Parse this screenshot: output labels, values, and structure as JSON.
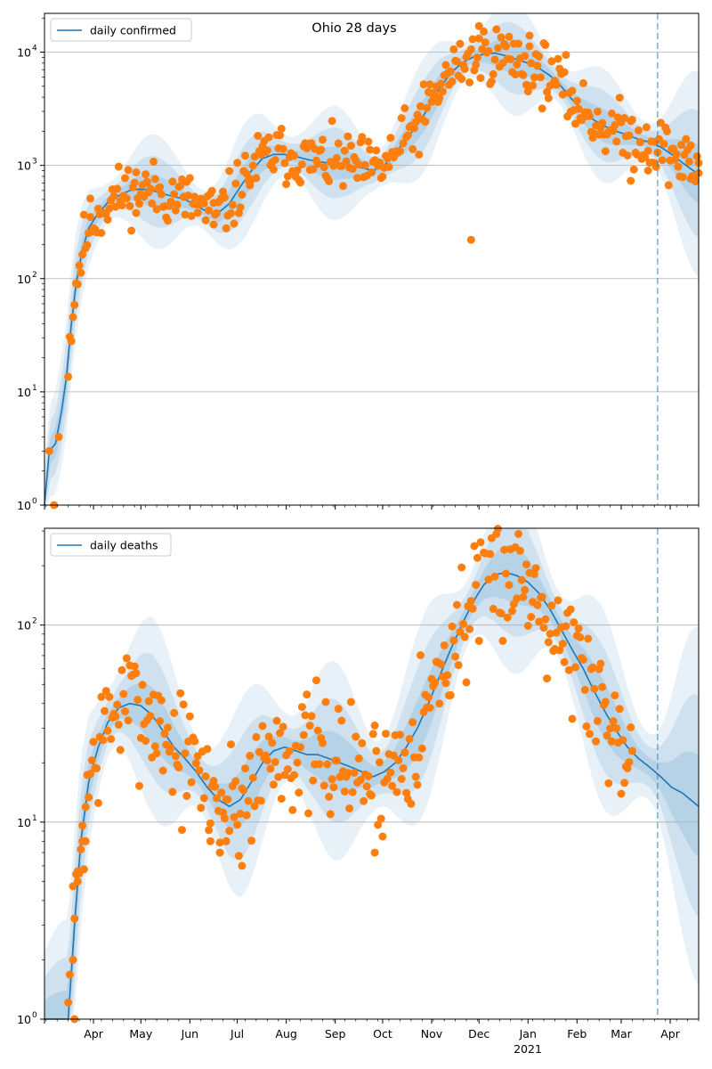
{
  "figure": {
    "title": "Ohio 28 days",
    "year_label": "2021",
    "colors": {
      "model_line": "#1f77b4",
      "observed": "#ff7f0e",
      "band": "#1f77b4",
      "grid": "#b0b0b0",
      "vline": "#1f77b4"
    }
  },
  "chart_data": [
    {
      "type": "line",
      "yscale": "log",
      "ylim": [
        1,
        22000
      ],
      "xlim": [
        "2020-03-01",
        "2021-04-19"
      ],
      "yticks": [
        1,
        10,
        100,
        1000,
        10000
      ],
      "ytick_labels": [
        {
          "base": "10",
          "exp": "0"
        },
        {
          "base": "10",
          "exp": "1"
        },
        {
          "base": "10",
          "exp": "2"
        },
        {
          "base": "10",
          "exp": "3"
        },
        {
          "base": "10",
          "exp": "4"
        }
      ],
      "grid": "horizontal",
      "legend": {
        "label": "daily confirmed",
        "placement": "top-left"
      },
      "vline_date": "2021-03-24",
      "model_curve": [
        [
          "2020-03-01",
          1
        ],
        [
          "2020-03-04",
          3
        ],
        [
          "2020-03-08",
          3.5
        ],
        [
          "2020-03-12",
          7
        ],
        [
          "2020-03-15",
          14
        ],
        [
          "2020-03-18",
          40
        ],
        [
          "2020-03-21",
          90
        ],
        [
          "2020-03-25",
          180
        ],
        [
          "2020-03-29",
          280
        ],
        [
          "2020-04-03",
          360
        ],
        [
          "2020-04-10",
          470
        ],
        [
          "2020-04-17",
          540
        ],
        [
          "2020-04-24",
          600
        ],
        [
          "2020-05-01",
          620
        ],
        [
          "2020-05-08",
          600
        ],
        [
          "2020-05-15",
          560
        ],
        [
          "2020-05-22",
          530
        ],
        [
          "2020-05-29",
          500
        ],
        [
          "2020-06-05",
          440
        ],
        [
          "2020-06-12",
          390
        ],
        [
          "2020-06-19",
          380
        ],
        [
          "2020-06-26",
          460
        ],
        [
          "2020-07-03",
          650
        ],
        [
          "2020-07-10",
          900
        ],
        [
          "2020-07-17",
          1150
        ],
        [
          "2020-07-24",
          1250
        ],
        [
          "2020-07-31",
          1250
        ],
        [
          "2020-08-07",
          1200
        ],
        [
          "2020-08-14",
          1130
        ],
        [
          "2020-08-21",
          1080
        ],
        [
          "2020-08-28",
          1050
        ],
        [
          "2020-09-04",
          1050
        ],
        [
          "2020-09-11",
          1000
        ],
        [
          "2020-09-18",
          950
        ],
        [
          "2020-09-25",
          900
        ],
        [
          "2020-10-02",
          1000
        ],
        [
          "2020-10-09",
          1300
        ],
        [
          "2020-10-16",
          1700
        ],
        [
          "2020-10-23",
          2300
        ],
        [
          "2020-10-30",
          3200
        ],
        [
          "2020-11-06",
          4800
        ],
        [
          "2020-11-13",
          6500
        ],
        [
          "2020-11-20",
          8000
        ],
        [
          "2020-11-27",
          9000
        ],
        [
          "2020-12-04",
          9600
        ],
        [
          "2020-12-11",
          9800
        ],
        [
          "2020-12-18",
          9300
        ],
        [
          "2020-12-25",
          8600
        ],
        [
          "2021-01-01",
          8000
        ],
        [
          "2021-01-08",
          7200
        ],
        [
          "2021-01-15",
          6200
        ],
        [
          "2021-01-22",
          5000
        ],
        [
          "2021-01-29",
          3800
        ],
        [
          "2021-02-05",
          3000
        ],
        [
          "2021-02-12",
          2500
        ],
        [
          "2021-02-19",
          2200
        ],
        [
          "2021-02-26",
          2000
        ],
        [
          "2021-03-05",
          1850
        ],
        [
          "2021-03-12",
          1700
        ],
        [
          "2021-03-19",
          1600
        ],
        [
          "2021-03-26",
          1450
        ],
        [
          "2021-04-02",
          1250
        ],
        [
          "2021-04-09",
          1050
        ],
        [
          "2021-04-19",
          830
        ]
      ],
      "outliers": [
        [
          "2020-03-04",
          3
        ],
        [
          "2020-03-07",
          1
        ],
        [
          "2020-03-10",
          4
        ],
        [
          "2020-11-26",
          220
        ],
        [
          "2020-03-30",
          350
        ],
        [
          "2020-04-28",
          380
        ],
        [
          "2020-06-16",
          300
        ],
        [
          "2021-01-01",
          4500
        ],
        [
          "2021-03-07",
          730
        ],
        [
          "2021-03-22",
          1050
        ],
        [
          "2021-03-18",
          900
        ],
        [
          "2021-04-14",
          1500
        ],
        [
          "2021-04-19",
          1050
        ],
        [
          "2020-12-01",
          17000
        ],
        [
          "2021-01-02",
          14000
        ]
      ],
      "points_seed": 11,
      "points_spread": 0.13
    },
    {
      "type": "line",
      "yscale": "log",
      "ylim": [
        1,
        310
      ],
      "xlim": [
        "2020-03-01",
        "2021-04-19"
      ],
      "yticks": [
        1,
        10,
        100
      ],
      "ytick_labels": [
        {
          "base": "10",
          "exp": "0"
        },
        {
          "base": "10",
          "exp": "1"
        },
        {
          "base": "10",
          "exp": "2"
        }
      ],
      "xticks": [
        "2020-04-01",
        "2020-05-01",
        "2020-06-01",
        "2020-07-01",
        "2020-08-01",
        "2020-09-01",
        "2020-10-01",
        "2020-11-01",
        "2020-12-01",
        "2021-01-01",
        "2021-02-01",
        "2021-03-01",
        "2021-04-01"
      ],
      "xtick_labels": [
        "Apr",
        "May",
        "Jun",
        "Jul",
        "Aug",
        "Sep",
        "Oct",
        "Nov",
        "Dec",
        "Jan",
        "Feb",
        "Mar",
        "Apr"
      ],
      "grid": "horizontal",
      "legend": {
        "label": "daily deaths",
        "placement": "top-left"
      },
      "vline_date": "2021-03-24",
      "model_curve": [
        [
          "2020-03-01",
          1
        ],
        [
          "2020-03-16",
          1
        ],
        [
          "2020-03-20",
          3
        ],
        [
          "2020-03-24",
          8
        ],
        [
          "2020-03-29",
          16
        ],
        [
          "2020-04-04",
          24
        ],
        [
          "2020-04-10",
          32
        ],
        [
          "2020-04-17",
          38
        ],
        [
          "2020-04-24",
          40
        ],
        [
          "2020-05-01",
          39
        ],
        [
          "2020-05-08",
          35
        ],
        [
          "2020-05-15",
          29
        ],
        [
          "2020-05-22",
          24
        ],
        [
          "2020-05-29",
          21
        ],
        [
          "2020-06-05",
          18
        ],
        [
          "2020-06-12",
          15
        ],
        [
          "2020-06-19",
          13
        ],
        [
          "2020-06-26",
          12
        ],
        [
          "2020-07-03",
          13
        ],
        [
          "2020-07-10",
          16
        ],
        [
          "2020-07-17",
          20
        ],
        [
          "2020-07-24",
          23
        ],
        [
          "2020-07-31",
          24
        ],
        [
          "2020-08-07",
          23
        ],
        [
          "2020-08-14",
          22
        ],
        [
          "2020-08-21",
          22
        ],
        [
          "2020-08-28",
          21
        ],
        [
          "2020-09-04",
          20
        ],
        [
          "2020-09-11",
          19
        ],
        [
          "2020-09-18",
          18
        ],
        [
          "2020-09-25",
          17
        ],
        [
          "2020-10-02",
          18
        ],
        [
          "2020-10-09",
          20
        ],
        [
          "2020-10-16",
          24
        ],
        [
          "2020-10-23",
          30
        ],
        [
          "2020-10-30",
          40
        ],
        [
          "2020-11-06",
          55
        ],
        [
          "2020-11-13",
          75
        ],
        [
          "2020-11-20",
          100
        ],
        [
          "2020-11-27",
          130
        ],
        [
          "2020-12-04",
          160
        ],
        [
          "2020-12-11",
          180
        ],
        [
          "2020-12-18",
          185
        ],
        [
          "2020-12-25",
          178
        ],
        [
          "2021-01-01",
          165
        ],
        [
          "2021-01-08",
          145
        ],
        [
          "2021-01-15",
          120
        ],
        [
          "2021-01-22",
          95
        ],
        [
          "2021-01-29",
          75
        ],
        [
          "2021-02-05",
          60
        ],
        [
          "2021-02-12",
          46
        ],
        [
          "2021-02-19",
          36
        ],
        [
          "2021-02-26",
          29
        ],
        [
          "2021-03-05",
          24
        ],
        [
          "2021-03-12",
          21
        ],
        [
          "2021-03-19",
          19
        ],
        [
          "2021-03-26",
          17
        ],
        [
          "2021-04-02",
          15
        ],
        [
          "2021-04-09",
          14
        ],
        [
          "2021-04-19",
          12
        ]
      ],
      "outliers": [
        [
          "2020-03-19",
          2
        ],
        [
          "2020-03-20",
          1
        ],
        [
          "2020-03-22",
          5
        ],
        [
          "2020-07-04",
          6
        ],
        [
          "2020-09-26",
          7
        ],
        [
          "2020-06-20",
          7
        ],
        [
          "2020-06-14",
          8
        ],
        [
          "2020-06-24",
          8
        ],
        [
          "2020-03-25",
          8
        ],
        [
          "2020-03-27",
          8
        ]
      ],
      "points_seed": 7,
      "points_spread": 0.16,
      "points_end": "2021-03-08"
    }
  ]
}
